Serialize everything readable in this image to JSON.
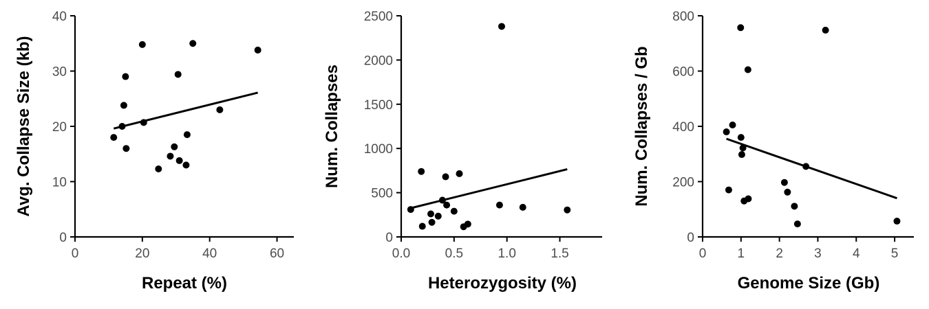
{
  "chart_data": [
    {
      "type": "scatter",
      "title": "",
      "xlabel": "Repeat (%)",
      "ylabel": "Avg. Collapse Size (kb)",
      "xlim": [
        0,
        65
      ],
      "ylim": [
        0,
        40
      ],
      "xticks": [
        0,
        20,
        40,
        60
      ],
      "yticks": [
        0,
        10,
        20,
        30,
        40
      ],
      "tick_labels_x": [
        "0",
        "20",
        "40",
        "60"
      ],
      "tick_labels_y": [
        "0",
        "10",
        "20",
        "30",
        "40"
      ],
      "points": [
        {
          "x": 11.5,
          "y": 18.0
        },
        {
          "x": 14.0,
          "y": 20.0
        },
        {
          "x": 14.5,
          "y": 23.8
        },
        {
          "x": 15.0,
          "y": 29.0
        },
        {
          "x": 15.2,
          "y": 16.0
        },
        {
          "x": 20.0,
          "y": 34.8
        },
        {
          "x": 20.4,
          "y": 20.7
        },
        {
          "x": 24.8,
          "y": 12.3
        },
        {
          "x": 28.3,
          "y": 14.6
        },
        {
          "x": 29.5,
          "y": 16.3
        },
        {
          "x": 30.6,
          "y": 29.4
        },
        {
          "x": 31.0,
          "y": 13.8
        },
        {
          "x": 33.0,
          "y": 13.0
        },
        {
          "x": 33.3,
          "y": 18.5
        },
        {
          "x": 35.0,
          "y": 35.0
        },
        {
          "x": 43.0,
          "y": 23.0
        },
        {
          "x": 54.3,
          "y": 33.8
        }
      ],
      "fit": {
        "x": [
          11.5,
          54.3
        ],
        "y": [
          19.6,
          26.1
        ]
      },
      "grid": false,
      "legend": "none"
    },
    {
      "type": "scatter",
      "title": "",
      "xlabel": "Heterozygosity (%)",
      "ylabel": "Num. Collapses",
      "xlim": [
        0,
        1.9
      ],
      "ylim": [
        0,
        2500
      ],
      "xticks": [
        0,
        0.5,
        1,
        1.5
      ],
      "yticks": [
        0,
        500,
        1000,
        1500,
        2000,
        2500
      ],
      "tick_labels_x": [
        "0.0",
        "0.5",
        "1.0",
        "1.5"
      ],
      "tick_labels_y": [
        "0",
        "500",
        "1000",
        "1500",
        "2000",
        "2500"
      ],
      "points": [
        {
          "x": 0.09,
          "y": 310
        },
        {
          "x": 0.19,
          "y": 740
        },
        {
          "x": 0.2,
          "y": 120
        },
        {
          "x": 0.28,
          "y": 260
        },
        {
          "x": 0.29,
          "y": 165
        },
        {
          "x": 0.35,
          "y": 235
        },
        {
          "x": 0.39,
          "y": 415
        },
        {
          "x": 0.42,
          "y": 680
        },
        {
          "x": 0.43,
          "y": 360
        },
        {
          "x": 0.5,
          "y": 290
        },
        {
          "x": 0.55,
          "y": 715
        },
        {
          "x": 0.59,
          "y": 115
        },
        {
          "x": 0.63,
          "y": 145
        },
        {
          "x": 0.93,
          "y": 360
        },
        {
          "x": 0.95,
          "y": 2380
        },
        {
          "x": 1.15,
          "y": 335
        },
        {
          "x": 1.57,
          "y": 305
        }
      ],
      "fit": {
        "x": [
          0.09,
          1.57
        ],
        "y": [
          325,
          765
        ]
      },
      "grid": false,
      "legend": "none"
    },
    {
      "type": "scatter",
      "title": "",
      "xlabel": "Genome Size (Gb)",
      "ylabel": "Num. Collapses / Gb",
      "xlim": [
        0,
        5.5
      ],
      "ylim": [
        0,
        800
      ],
      "xticks": [
        0,
        1,
        2,
        3,
        4,
        5
      ],
      "yticks": [
        0,
        200,
        400,
        600,
        800
      ],
      "tick_labels_x": [
        "0",
        "1",
        "2",
        "3",
        "4",
        "5"
      ],
      "tick_labels_y": [
        "0",
        "200",
        "400",
        "600",
        "800"
      ],
      "points": [
        {
          "x": 0.62,
          "y": 380
        },
        {
          "x": 0.68,
          "y": 170
        },
        {
          "x": 0.78,
          "y": 405
        },
        {
          "x": 0.99,
          "y": 757
        },
        {
          "x": 1.0,
          "y": 360
        },
        {
          "x": 1.02,
          "y": 298
        },
        {
          "x": 1.05,
          "y": 322
        },
        {
          "x": 1.08,
          "y": 130
        },
        {
          "x": 1.18,
          "y": 605
        },
        {
          "x": 1.19,
          "y": 138
        },
        {
          "x": 2.13,
          "y": 197
        },
        {
          "x": 2.21,
          "y": 162
        },
        {
          "x": 2.39,
          "y": 111
        },
        {
          "x": 2.47,
          "y": 47
        },
        {
          "x": 2.69,
          "y": 255
        },
        {
          "x": 3.2,
          "y": 748
        },
        {
          "x": 5.06,
          "y": 57
        }
      ],
      "fit": {
        "x": [
          0.62,
          5.06
        ],
        "y": [
          355,
          140
        ]
      },
      "grid": false,
      "legend": "none"
    }
  ]
}
